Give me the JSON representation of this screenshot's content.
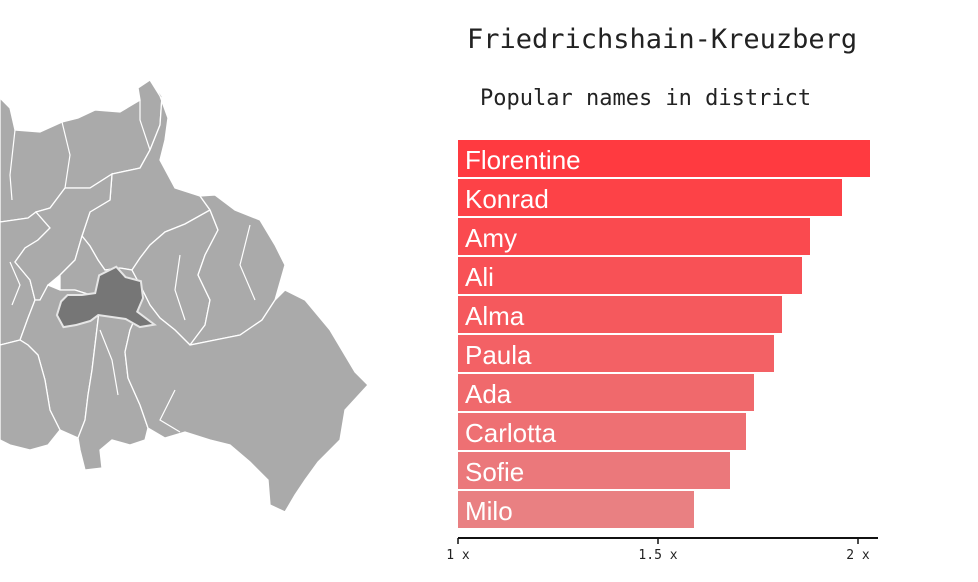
{
  "title": "Friedrichshain-Kreuzberg",
  "subtitle": "Popular names in district",
  "colors": {
    "bar_start": "#ff3a40",
    "bar_end": "#e98082",
    "map_fill": "#aaaaaa",
    "map_selected": "#767676"
  },
  "chart_data": {
    "type": "bar",
    "orientation": "horizontal",
    "categories": [
      "Florentine",
      "Konrad",
      "Amy",
      "Ali",
      "Alma",
      "Paula",
      "Ada",
      "Carlotta",
      "Sofie",
      "Milo"
    ],
    "values": [
      2.03,
      1.96,
      1.88,
      1.86,
      1.81,
      1.79,
      1.74,
      1.72,
      1.68,
      1.59
    ],
    "xlim": [
      1,
      2.05
    ],
    "xticks": [
      1,
      1.5,
      2
    ],
    "xtick_labels": [
      "1 x",
      "1.5 x",
      "2 x"
    ]
  }
}
